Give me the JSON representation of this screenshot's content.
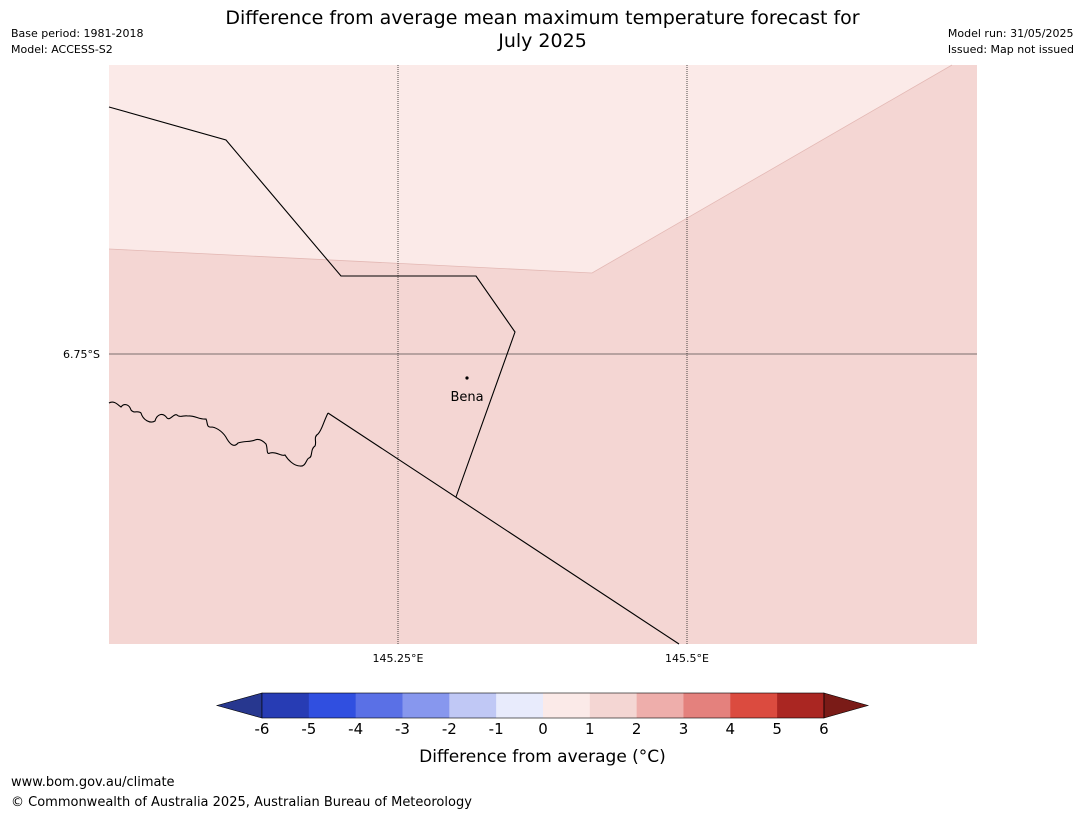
{
  "title": {
    "line1": "Difference from average mean maximum temperature forecast for",
    "line2": "July 2025"
  },
  "meta": {
    "base_period": "Base period: 1981-2018",
    "model": "Model: ACCESS-S2",
    "model_run": "Model run: 31/05/2025",
    "issued": "Issued: Map not issued"
  },
  "map": {
    "lat_label": "6.75°S",
    "lon_labels": [
      "145.25°E",
      "145.5°E"
    ],
    "place": "Bena",
    "fill_colors": {
      "band_0_1": "#fbeae8",
      "band_1_2": "#f4d6d3"
    }
  },
  "colorbar": {
    "ticks": [
      "-6",
      "-5",
      "-4",
      "-3",
      "-2",
      "-1",
      "0",
      "1",
      "2",
      "3",
      "4",
      "5",
      "6"
    ],
    "colors": [
      "#27378f",
      "#273cb4",
      "#304fe0",
      "#5a70e6",
      "#8797ee",
      "#c0c8f5",
      "#e8ebfc",
      "#fbeae8",
      "#f4d6d3",
      "#eeaeab",
      "#e4817d",
      "#db4b3f",
      "#aa2622",
      "#7a1b17"
    ],
    "label": "Difference from average (°C)"
  },
  "footer": {
    "url": "www.bom.gov.au/climate",
    "copyright": "© Commonwealth of Australia 2025, Australian Bureau of Meteorology"
  }
}
